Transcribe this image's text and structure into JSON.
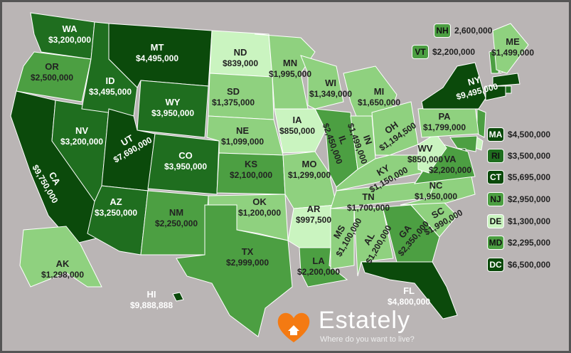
{
  "title": "",
  "colors": {
    "background": "#bab5b5",
    "tier1": "#0b4a0b",
    "tier2": "#1f6e1f",
    "tier3": "#4c9f42",
    "tier4": "#8fd17f",
    "tier5": "#caf4c0"
  },
  "states": {
    "WA": "$3,200,000",
    "OR": "$2,500,000",
    "CA": "$9,750,000",
    "NV": "$3,200,000",
    "ID": "$3,495,000",
    "MT": "$4,495,000",
    "WY": "$3,950,000",
    "UT": "$7,690,000",
    "CO": "$3,950,000",
    "AZ": "$3,250,000",
    "NM": "$2,250,000",
    "ND": "$839,000",
    "SD": "$1,375,000",
    "NE": "$1,099,000",
    "KS": "$2,100,000",
    "OK": "$1,200,000",
    "TX": "$2,999,000",
    "MN": "$1,995,000",
    "IA": "$850,000",
    "MO": "$1,299,000",
    "AR": "$997,500",
    "LA": "$2,200,000",
    "WI": "$1,349,000",
    "MI": "$1,650,000",
    "IL": "$2,450,000",
    "IN": "$1,499,000",
    "OH": "$1,194,500",
    "KY": "$1,150,000",
    "TN": "$1,700,000",
    "MS": "$1,100,000",
    "AL": "$1,200,000",
    "GA": "$2,350,000",
    "FL": "$4,800,000",
    "SC": "$1,990,000",
    "NC": "$1,950,000",
    "VA": "$2,200,000",
    "WV": "$850,000",
    "PA": "$1,799,000",
    "NY": "$9,495,000",
    "ME": "$1,499,000",
    "AK": "$1,298,000",
    "HI": "$9,888,888"
  },
  "callouts": [
    {
      "abbr": "NH",
      "value": "2,600,000"
    },
    {
      "abbr": "VT",
      "value": "$2,200,000"
    }
  ],
  "legend": [
    {
      "abbr": "MA",
      "value": "$4,500,000"
    },
    {
      "abbr": "RI",
      "value": "$3,500,000"
    },
    {
      "abbr": "CT",
      "value": "$5,695,000"
    },
    {
      "abbr": "NJ",
      "value": "$2,950,000"
    },
    {
      "abbr": "DE",
      "value": "$1,300,000"
    },
    {
      "abbr": "MD",
      "value": "$2,295,000"
    },
    {
      "abbr": "DC",
      "value": "$6,500,000"
    }
  ],
  "brand": {
    "name": "Estately",
    "tagline": "Where do you want to live?"
  }
}
